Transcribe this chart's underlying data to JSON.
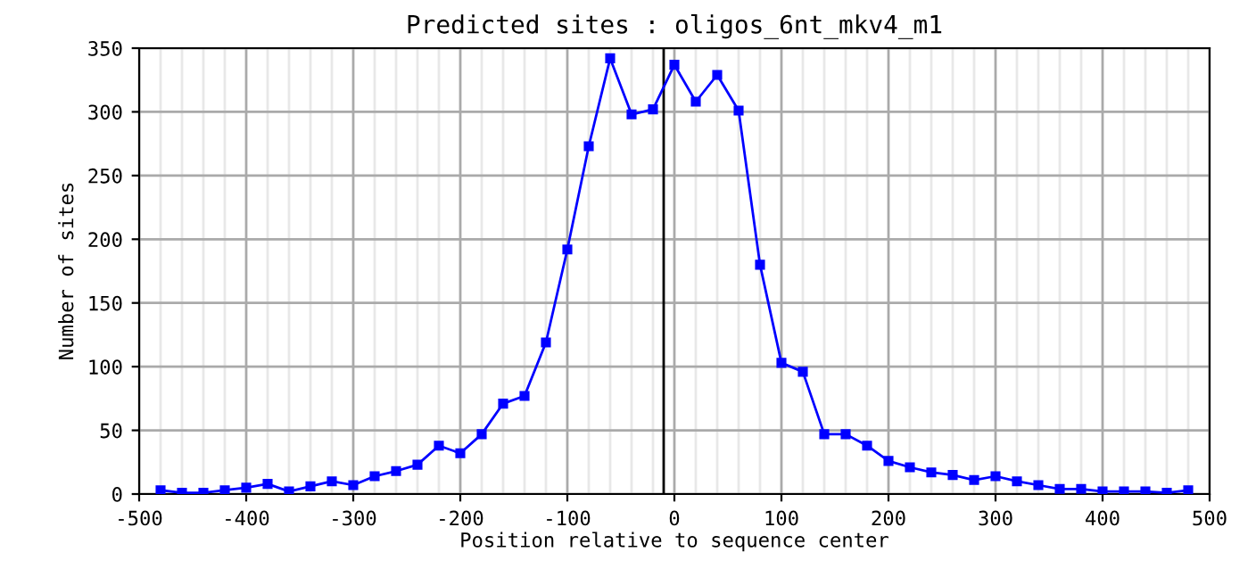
{
  "chart_data": {
    "type": "line",
    "title": "Predicted sites : oligos_6nt_mkv4_m1",
    "xlabel": "Position relative to sequence center",
    "ylabel": "Number of sites",
    "x": [
      -480,
      -460,
      -440,
      -420,
      -400,
      -380,
      -360,
      -340,
      -320,
      -300,
      -280,
      -260,
      -240,
      -220,
      -200,
      -180,
      -160,
      -140,
      -120,
      -100,
      -80,
      -60,
      -40,
      -20,
      0,
      20,
      40,
      60,
      80,
      100,
      120,
      140,
      160,
      180,
      200,
      220,
      240,
      260,
      280,
      300,
      320,
      340,
      360,
      380,
      400,
      420,
      440,
      460,
      480
    ],
    "series": [
      {
        "color": "#0000ff",
        "values": [
          3,
          1,
          1,
          3,
          5,
          8,
          2,
          6,
          10,
          7,
          14,
          18,
          23,
          38,
          32,
          47,
          71,
          77,
          119,
          192,
          273,
          342,
          298,
          302,
          337,
          308,
          329,
          301,
          180,
          103,
          96,
          47,
          47,
          38,
          26,
          21,
          17,
          15,
          11,
          14,
          10,
          7,
          4,
          4,
          2,
          2,
          2,
          1,
          3
        ]
      }
    ],
    "xlim": [
      -500,
      500
    ],
    "xticks": [
      -500,
      -400,
      -300,
      -200,
      -100,
      0,
      100,
      200,
      300,
      400,
      500
    ],
    "ylim": [
      0,
      350
    ],
    "yticks": [
      0,
      50,
      100,
      150,
      200,
      250,
      300,
      350
    ],
    "ref_lines": [
      {
        "axis": "x",
        "value": -10,
        "color": "#000000"
      }
    ],
    "grid": true,
    "marker": "square",
    "line_style": "solid"
  }
}
